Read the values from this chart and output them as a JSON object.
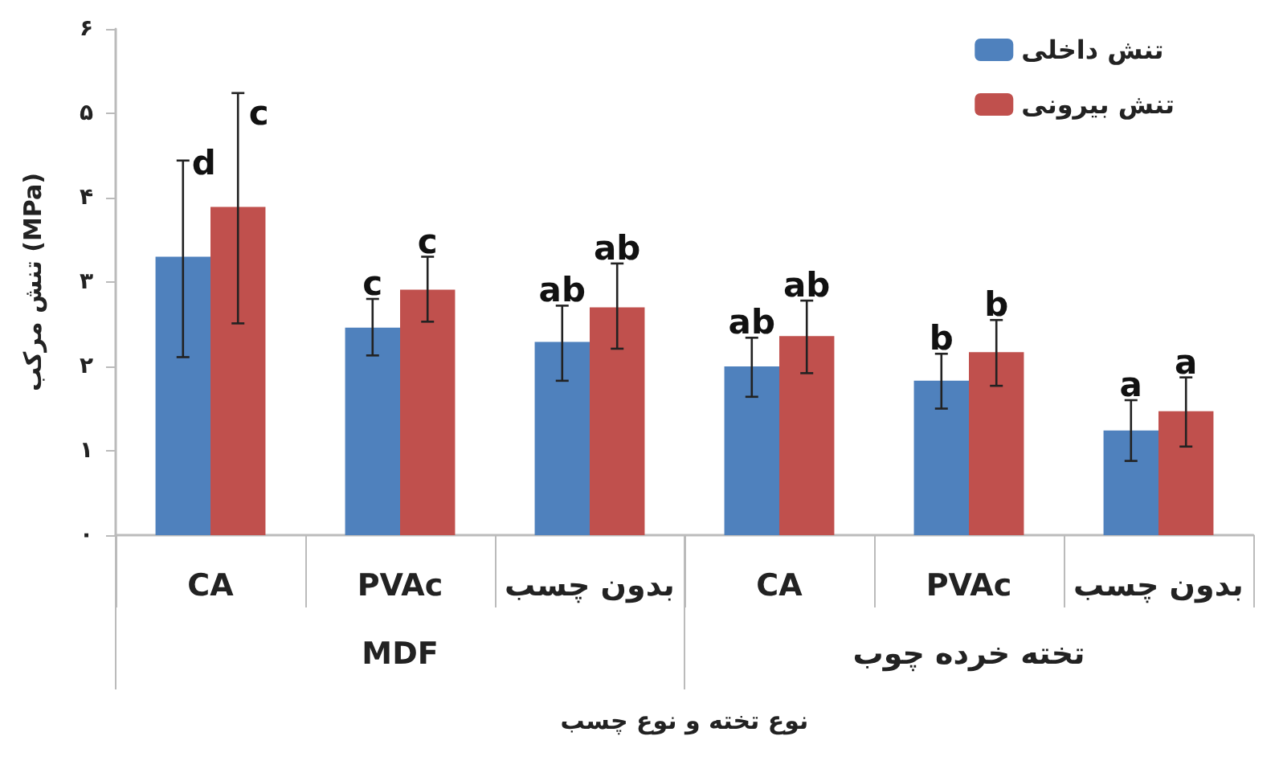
{
  "chart_data": {
    "type": "bar",
    "xlabel": "نوع تخته و نوع چسب",
    "ylabel": "تنش مرکب (MPa)",
    "categories": [
      "CA",
      "PVAc",
      "بدون چسب",
      "CA",
      "PVAc",
      "بدون چسب"
    ],
    "annotations": [
      "MDF",
      "تخته خرده چوب"
    ],
    "series": [
      {
        "name": "تنش داخلی",
        "color": "#4f81bd",
        "values": [
          3.3,
          2.46,
          2.29,
          2.0,
          1.83,
          1.24
        ],
        "errors": [
          [
            2.11,
            4.44
          ],
          [
            2.13,
            2.8
          ],
          [
            1.83,
            2.72
          ],
          [
            1.64,
            2.34
          ],
          [
            1.5,
            2.15
          ],
          [
            0.88,
            1.6
          ]
        ],
        "value_labels": [
          "d",
          "c",
          "ab",
          "ab",
          "b",
          "a"
        ]
      },
      {
        "name": "تنش بیرونی",
        "color": "#c0504d",
        "values": [
          3.89,
          2.91,
          2.7,
          2.36,
          2.17,
          1.47
        ],
        "errors": [
          [
            2.51,
            5.24
          ],
          [
            2.53,
            3.3
          ],
          [
            2.21,
            3.22
          ],
          [
            1.92,
            2.78
          ],
          [
            1.77,
            2.55
          ],
          [
            1.05,
            1.87
          ]
        ],
        "value_labels": [
          "c",
          "c",
          "ab",
          "ab",
          "b",
          "a"
        ]
      }
    ],
    "ylim": [
      0,
      6
    ],
    "yticks": [
      {
        "value": 0,
        "label": "۰"
      },
      {
        "value": 1,
        "label": "۱"
      },
      {
        "value": 2,
        "label": "۲"
      },
      {
        "value": 3,
        "label": "۳"
      },
      {
        "value": 4,
        "label": "۴"
      },
      {
        "value": 5,
        "label": "۵"
      },
      {
        "value": 6,
        "label": "۶"
      }
    ],
    "grid": false,
    "legend": "top right"
  }
}
